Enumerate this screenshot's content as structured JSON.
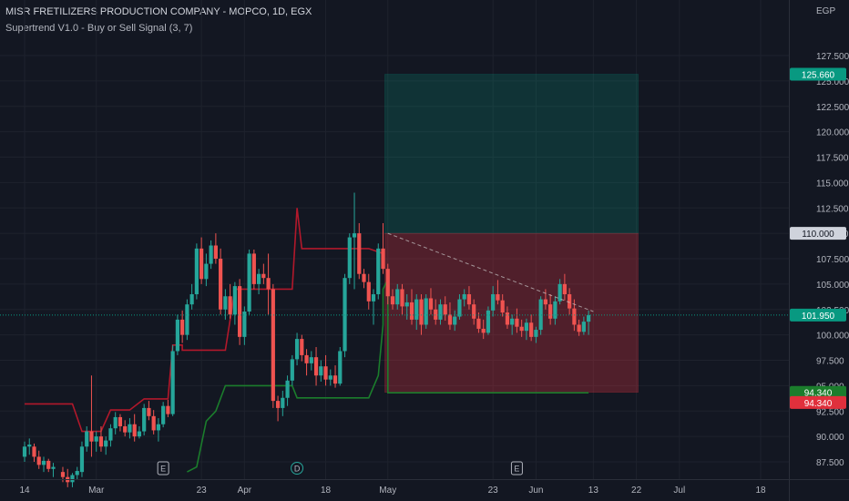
{
  "header": {
    "title": "MISR FRETILIZERS PRODUCTION COMPANY - MOPCO, 1D, EGX",
    "indicator": "Supertrend V1.0 - Buy or Sell Signal (3, 7)",
    "currency": "EGP"
  },
  "chart_data": {
    "type": "candlestick",
    "y_axis": {
      "range": [
        86.5,
        129
      ],
      "ticks": [
        "87.500",
        "90.000",
        "92.500",
        "95.000",
        "97.500",
        "100.000",
        "102.500",
        "105.000",
        "107.500",
        "110.000",
        "112.500",
        "115.000",
        "117.500",
        "120.000",
        "122.500",
        "125.000",
        "127.500"
      ]
    },
    "x_axis": {
      "ticks": [
        {
          "label": "14",
          "day": 0
        },
        {
          "label": "Mar",
          "day": 15
        },
        {
          "label": "23",
          "day": 37
        },
        {
          "label": "Apr",
          "day": 46
        },
        {
          "label": "18",
          "day": 63
        },
        {
          "label": "May",
          "day": 76
        },
        {
          "label": "23",
          "day": 98
        },
        {
          "label": "Jun",
          "day": 107
        },
        {
          "label": "13",
          "day": 119
        },
        {
          "label": "22",
          "day": 128
        },
        {
          "label": "Jul",
          "day": 137
        },
        {
          "label": "18",
          "day": 154
        }
      ]
    },
    "price_tags": [
      {
        "value": 125.66,
        "label": "125.660",
        "bg": "#089981",
        "color": "#ffffff"
      },
      {
        "value": 110.0,
        "label": "110.000",
        "bg": "#cfd3dc",
        "color": "#131722"
      },
      {
        "value": 101.95,
        "label": "101.950",
        "bg": "#089981",
        "color": "#ffffff"
      },
      {
        "value": 94.34,
        "label": "94.340",
        "bg": "#1b7d2c",
        "color": "#ffffff"
      },
      {
        "value": 93.34,
        "label": "94.340",
        "bg": "#e0303c",
        "color": "#ffffff"
      }
    ],
    "position": {
      "start_day": 75,
      "end_day": 128,
      "entry": 110.0,
      "target": 125.66,
      "stop": 94.34
    },
    "current_price": 101.95,
    "trendline": [
      [
        76,
        110.0
      ],
      [
        119,
        102.3
      ]
    ],
    "markers": [
      {
        "label": "E",
        "day": 29,
        "shape": "square"
      },
      {
        "label": "D",
        "day": 57,
        "shape": "circle"
      },
      {
        "label": "E",
        "day": 103,
        "shape": "square"
      }
    ],
    "supertrend_red": [
      [
        0,
        93.2
      ],
      [
        10,
        93.2
      ],
      [
        12,
        90.5
      ],
      [
        16,
        90.5
      ],
      [
        18,
        92.6
      ],
      [
        22,
        92.6
      ],
      [
        25,
        93.7
      ],
      [
        30,
        93.7
      ],
      [
        31,
        99.0
      ],
      [
        33,
        99.0
      ],
      [
        33,
        98.5
      ],
      [
        42,
        98.5
      ],
      [
        44,
        104.5
      ],
      [
        56,
        104.5
      ],
      [
        57,
        112.5
      ],
      [
        58,
        108.5
      ],
      [
        72,
        108.5
      ],
      [
        75,
        108.0
      ]
    ],
    "supertrend_green": [
      [
        34,
        86.5
      ],
      [
        36,
        87.0
      ],
      [
        38,
        91.5
      ],
      [
        40,
        92.5
      ],
      [
        42,
        95.0
      ],
      [
        56,
        95.0
      ],
      [
        57,
        93.8
      ],
      [
        72,
        93.8
      ],
      [
        74,
        96.0
      ],
      [
        75,
        101.0
      ],
      [
        75,
        104.5
      ],
      [
        76,
        105.5
      ],
      [
        76,
        94.3
      ],
      [
        118,
        94.3
      ]
    ],
    "candles": [
      {
        "d": 0,
        "o": 88.0,
        "h": 89.5,
        "l": 87.5,
        "c": 89.0
      },
      {
        "d": 1,
        "o": 89.0,
        "h": 89.8,
        "l": 88.2,
        "c": 89.2
      },
      {
        "d": 2,
        "o": 89.0,
        "h": 89.3,
        "l": 87.5,
        "c": 88.0
      },
      {
        "d": 3,
        "o": 88.0,
        "h": 88.6,
        "l": 86.8,
        "c": 87.2
      },
      {
        "d": 4,
        "o": 87.2,
        "h": 88.0,
        "l": 86.5,
        "c": 87.6
      },
      {
        "d": 5,
        "o": 87.6,
        "h": 87.8,
        "l": 86.5,
        "c": 86.8
      },
      {
        "d": 6,
        "o": 86.8,
        "h": 87.4,
        "l": 86.0,
        "c": 87.0
      },
      {
        "d": 8,
        "o": 86.5,
        "h": 87.0,
        "l": 85.5,
        "c": 86.0
      },
      {
        "d": 9,
        "o": 86.0,
        "h": 86.8,
        "l": 85.0,
        "c": 85.5
      },
      {
        "d": 10,
        "o": 85.5,
        "h": 86.4,
        "l": 85.0,
        "c": 86.2
      },
      {
        "d": 11,
        "o": 86.2,
        "h": 87.0,
        "l": 85.8,
        "c": 86.6
      },
      {
        "d": 12,
        "o": 86.5,
        "h": 89.5,
        "l": 86.0,
        "c": 89.0
      },
      {
        "d": 13,
        "o": 89.0,
        "h": 91.0,
        "l": 88.5,
        "c": 90.5
      },
      {
        "d": 14,
        "o": 90.5,
        "h": 96.0,
        "l": 88.0,
        "c": 89.5
      },
      {
        "d": 15,
        "o": 89.5,
        "h": 90.5,
        "l": 88.5,
        "c": 90.0
      },
      {
        "d": 16,
        "o": 90.0,
        "h": 91.0,
        "l": 88.5,
        "c": 89.0
      },
      {
        "d": 17,
        "o": 89.0,
        "h": 90.0,
        "l": 88.2,
        "c": 89.6
      },
      {
        "d": 18,
        "o": 89.6,
        "h": 91.2,
        "l": 89.0,
        "c": 90.8
      },
      {
        "d": 19,
        "o": 90.8,
        "h": 92.4,
        "l": 90.2,
        "c": 91.9
      },
      {
        "d": 20,
        "o": 91.9,
        "h": 92.2,
        "l": 90.5,
        "c": 91.0
      },
      {
        "d": 21,
        "o": 91.0,
        "h": 91.6,
        "l": 90.0,
        "c": 90.4
      },
      {
        "d": 22,
        "o": 90.4,
        "h": 91.8,
        "l": 89.8,
        "c": 91.2
      },
      {
        "d": 23,
        "o": 91.2,
        "h": 92.2,
        "l": 89.5,
        "c": 90.0
      },
      {
        "d": 24,
        "o": 90.0,
        "h": 91.0,
        "l": 89.8,
        "c": 90.5
      },
      {
        "d": 25,
        "o": 90.5,
        "h": 93.2,
        "l": 90.1,
        "c": 92.8
      },
      {
        "d": 26,
        "o": 92.8,
        "h": 93.5,
        "l": 91.6,
        "c": 92.0
      },
      {
        "d": 27,
        "o": 92.0,
        "h": 92.6,
        "l": 90.2,
        "c": 90.6
      },
      {
        "d": 28,
        "o": 90.6,
        "h": 91.8,
        "l": 89.5,
        "c": 91.2
      },
      {
        "d": 29,
        "o": 91.2,
        "h": 93.4,
        "l": 90.9,
        "c": 93.0
      },
      {
        "d": 30,
        "o": 93.0,
        "h": 93.6,
        "l": 91.9,
        "c": 92.2
      },
      {
        "d": 31,
        "o": 92.2,
        "h": 99.0,
        "l": 92.0,
        "c": 98.4
      },
      {
        "d": 32,
        "o": 98.4,
        "h": 102.0,
        "l": 98.0,
        "c": 101.5
      },
      {
        "d": 33,
        "o": 101.5,
        "h": 102.4,
        "l": 99.2,
        "c": 100.0
      },
      {
        "d": 34,
        "o": 100.0,
        "h": 103.5,
        "l": 99.5,
        "c": 103.0
      },
      {
        "d": 35,
        "o": 103.0,
        "h": 105.0,
        "l": 102.5,
        "c": 104.0
      },
      {
        "d": 36,
        "o": 104.0,
        "h": 109.0,
        "l": 103.5,
        "c": 108.5
      },
      {
        "d": 37,
        "o": 108.5,
        "h": 109.6,
        "l": 105.0,
        "c": 105.5
      },
      {
        "d": 38,
        "o": 105.5,
        "h": 108.0,
        "l": 104.8,
        "c": 107.0
      },
      {
        "d": 39,
        "o": 107.0,
        "h": 109.3,
        "l": 106.5,
        "c": 108.8
      },
      {
        "d": 40,
        "o": 108.8,
        "h": 110.0,
        "l": 107.0,
        "c": 107.5
      },
      {
        "d": 41,
        "o": 107.5,
        "h": 108.5,
        "l": 102.0,
        "c": 102.5
      },
      {
        "d": 42,
        "o": 102.5,
        "h": 104.5,
        "l": 101.5,
        "c": 103.8
      },
      {
        "d": 43,
        "o": 103.8,
        "h": 105.0,
        "l": 101.6,
        "c": 102.0
      },
      {
        "d": 44,
        "o": 102.0,
        "h": 105.2,
        "l": 101.0,
        "c": 104.8
      },
      {
        "d": 45,
        "o": 104.8,
        "h": 105.5,
        "l": 99.0,
        "c": 99.8
      },
      {
        "d": 46,
        "o": 99.8,
        "h": 102.8,
        "l": 99.0,
        "c": 102.3
      },
      {
        "d": 47,
        "o": 102.3,
        "h": 108.4,
        "l": 102.0,
        "c": 108.0
      },
      {
        "d": 48,
        "o": 108.0,
        "h": 108.4,
        "l": 104.5,
        "c": 105.0
      },
      {
        "d": 49,
        "o": 105.0,
        "h": 106.5,
        "l": 104.0,
        "c": 106.0
      },
      {
        "d": 50,
        "o": 106.0,
        "h": 107.0,
        "l": 105.0,
        "c": 105.6
      },
      {
        "d": 51,
        "o": 105.6,
        "h": 108.0,
        "l": 102.0,
        "c": 104.5
      },
      {
        "d": 52,
        "o": 104.5,
        "h": 105.0,
        "l": 92.8,
        "c": 93.5
      },
      {
        "d": 53,
        "o": 93.5,
        "h": 94.0,
        "l": 91.5,
        "c": 92.8
      },
      {
        "d": 54,
        "o": 92.8,
        "h": 94.5,
        "l": 92.0,
        "c": 93.8
      },
      {
        "d": 55,
        "o": 93.8,
        "h": 96.0,
        "l": 93.0,
        "c": 95.5
      },
      {
        "d": 56,
        "o": 95.5,
        "h": 98.0,
        "l": 95.0,
        "c": 97.6
      },
      {
        "d": 57,
        "o": 97.6,
        "h": 100.2,
        "l": 97.0,
        "c": 99.6
      },
      {
        "d": 58,
        "o": 99.6,
        "h": 100.0,
        "l": 97.4,
        "c": 98.0
      },
      {
        "d": 59,
        "o": 98.0,
        "h": 98.6,
        "l": 96.0,
        "c": 97.2
      },
      {
        "d": 60,
        "o": 97.2,
        "h": 98.4,
        "l": 96.5,
        "c": 97.8
      },
      {
        "d": 61,
        "o": 97.8,
        "h": 98.8,
        "l": 95.0,
        "c": 96.0
      },
      {
        "d": 62,
        "o": 96.0,
        "h": 97.5,
        "l": 95.4,
        "c": 96.9
      },
      {
        "d": 63,
        "o": 96.9,
        "h": 98.0,
        "l": 95.0,
        "c": 95.6
      },
      {
        "d": 64,
        "o": 95.6,
        "h": 96.6,
        "l": 95.0,
        "c": 96.0
      },
      {
        "d": 65,
        "o": 96.0,
        "h": 97.0,
        "l": 94.8,
        "c": 95.2
      },
      {
        "d": 66,
        "o": 95.2,
        "h": 98.8,
        "l": 95.0,
        "c": 98.4
      },
      {
        "d": 67,
        "o": 98.4,
        "h": 106.0,
        "l": 97.8,
        "c": 105.6
      },
      {
        "d": 68,
        "o": 105.6,
        "h": 110.0,
        "l": 105.0,
        "c": 109.6
      },
      {
        "d": 69,
        "o": 109.6,
        "h": 114.0,
        "l": 104.5,
        "c": 110.0
      },
      {
        "d": 70,
        "o": 110.0,
        "h": 111.0,
        "l": 105.5,
        "c": 106.0
      },
      {
        "d": 71,
        "o": 106.0,
        "h": 106.5,
        "l": 104.6,
        "c": 105.2
      },
      {
        "d": 72,
        "o": 105.2,
        "h": 106.0,
        "l": 102.5,
        "c": 103.3
      },
      {
        "d": 73,
        "o": 103.3,
        "h": 104.5,
        "l": 101.0,
        "c": 104.0
      },
      {
        "d": 74,
        "o": 104.0,
        "h": 109.0,
        "l": 103.5,
        "c": 108.5
      },
      {
        "d": 75,
        "o": 108.5,
        "h": 111.0,
        "l": 106.0,
        "c": 106.5
      },
      {
        "d": 76,
        "o": 106.5,
        "h": 107.0,
        "l": 103.0,
        "c": 103.8
      },
      {
        "d": 77,
        "o": 103.8,
        "h": 104.5,
        "l": 102.5,
        "c": 103.0
      },
      {
        "d": 78,
        "o": 103.0,
        "h": 105.0,
        "l": 102.5,
        "c": 104.5
      },
      {
        "d": 79,
        "o": 104.5,
        "h": 105.0,
        "l": 102.0,
        "c": 102.8
      },
      {
        "d": 80,
        "o": 102.8,
        "h": 104.0,
        "l": 101.5,
        "c": 103.2
      },
      {
        "d": 81,
        "o": 103.2,
        "h": 104.5,
        "l": 101.0,
        "c": 101.5
      },
      {
        "d": 82,
        "o": 101.5,
        "h": 104.0,
        "l": 100.5,
        "c": 103.5
      },
      {
        "d": 83,
        "o": 103.5,
        "h": 104.0,
        "l": 100.0,
        "c": 101.0
      },
      {
        "d": 84,
        "o": 101.0,
        "h": 104.0,
        "l": 100.6,
        "c": 103.6
      },
      {
        "d": 85,
        "o": 103.6,
        "h": 104.6,
        "l": 102.0,
        "c": 102.5
      },
      {
        "d": 86,
        "o": 102.5,
        "h": 103.5,
        "l": 101.0,
        "c": 101.5
      },
      {
        "d": 87,
        "o": 101.5,
        "h": 103.5,
        "l": 101.0,
        "c": 103.0
      },
      {
        "d": 88,
        "o": 103.0,
        "h": 103.8,
        "l": 101.4,
        "c": 102.0
      },
      {
        "d": 89,
        "o": 102.0,
        "h": 103.2,
        "l": 100.5,
        "c": 101.0
      },
      {
        "d": 90,
        "o": 101.0,
        "h": 102.4,
        "l": 100.4,
        "c": 101.8
      },
      {
        "d": 91,
        "o": 101.8,
        "h": 104.0,
        "l": 101.5,
        "c": 103.5
      },
      {
        "d": 92,
        "o": 103.5,
        "h": 104.5,
        "l": 102.8,
        "c": 104.0
      },
      {
        "d": 93,
        "o": 104.0,
        "h": 104.8,
        "l": 102.5,
        "c": 103.0
      },
      {
        "d": 94,
        "o": 103.0,
        "h": 103.5,
        "l": 101.0,
        "c": 101.6
      },
      {
        "d": 95,
        "o": 101.6,
        "h": 102.2,
        "l": 100.2,
        "c": 100.6
      },
      {
        "d": 96,
        "o": 100.6,
        "h": 101.5,
        "l": 99.6,
        "c": 100.2
      },
      {
        "d": 97,
        "o": 100.2,
        "h": 102.8,
        "l": 100.0,
        "c": 102.4
      },
      {
        "d": 98,
        "o": 102.4,
        "h": 104.8,
        "l": 101.8,
        "c": 104.0
      },
      {
        "d": 99,
        "o": 104.0,
        "h": 105.4,
        "l": 103.0,
        "c": 103.4
      },
      {
        "d": 100,
        "o": 103.4,
        "h": 104.0,
        "l": 101.8,
        "c": 102.2
      },
      {
        "d": 101,
        "o": 102.2,
        "h": 102.8,
        "l": 100.6,
        "c": 101.0
      },
      {
        "d": 102,
        "o": 101.0,
        "h": 102.0,
        "l": 100.0,
        "c": 101.6
      },
      {
        "d": 103,
        "o": 101.6,
        "h": 102.6,
        "l": 100.2,
        "c": 100.8
      },
      {
        "d": 104,
        "o": 100.8,
        "h": 101.5,
        "l": 99.8,
        "c": 100.4
      },
      {
        "d": 105,
        "o": 100.4,
        "h": 101.6,
        "l": 99.5,
        "c": 101.2
      },
      {
        "d": 106,
        "o": 101.2,
        "h": 102.0,
        "l": 99.4,
        "c": 99.8
      },
      {
        "d": 107,
        "o": 99.8,
        "h": 100.8,
        "l": 99.2,
        "c": 100.5
      },
      {
        "d": 108,
        "o": 100.5,
        "h": 103.8,
        "l": 100.0,
        "c": 103.5
      },
      {
        "d": 109,
        "o": 103.5,
        "h": 104.5,
        "l": 102.5,
        "c": 103.0
      },
      {
        "d": 110,
        "o": 103.0,
        "h": 104.0,
        "l": 101.0,
        "c": 101.6
      },
      {
        "d": 111,
        "o": 101.6,
        "h": 103.8,
        "l": 101.0,
        "c": 103.3
      },
      {
        "d": 112,
        "o": 103.3,
        "h": 105.5,
        "l": 103.0,
        "c": 105.0
      },
      {
        "d": 113,
        "o": 105.0,
        "h": 106.0,
        "l": 103.4,
        "c": 104.0
      },
      {
        "d": 114,
        "o": 104.0,
        "h": 104.6,
        "l": 102.0,
        "c": 102.6
      },
      {
        "d": 115,
        "o": 102.6,
        "h": 103.5,
        "l": 100.4,
        "c": 101.0
      },
      {
        "d": 116,
        "o": 101.0,
        "h": 101.5,
        "l": 99.9,
        "c": 100.3
      },
      {
        "d": 117,
        "o": 100.3,
        "h": 101.8,
        "l": 100.0,
        "c": 101.3
      },
      {
        "d": 118,
        "o": 101.3,
        "h": 102.4,
        "l": 100.0,
        "c": 101.95
      }
    ]
  }
}
